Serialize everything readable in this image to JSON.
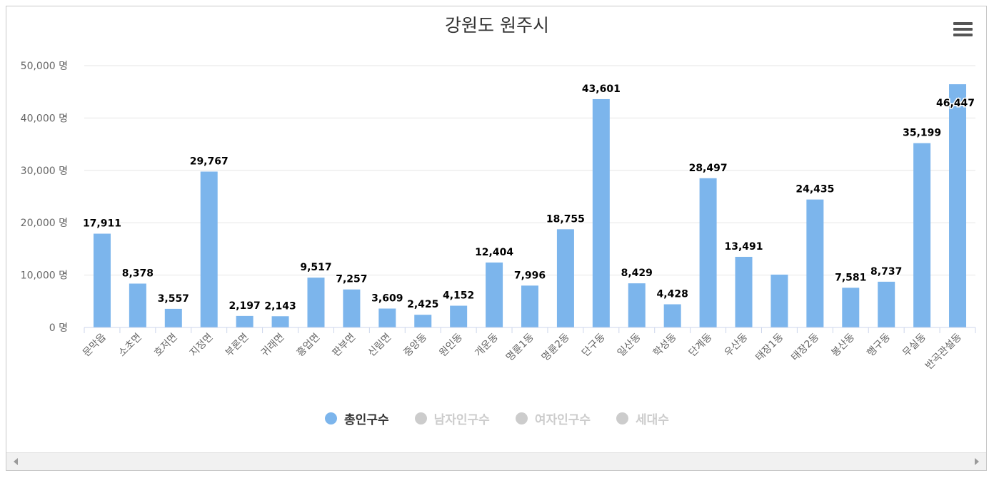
{
  "chart_data": {
    "type": "bar",
    "title": "강원도 원주시",
    "categories": [
      "문막읍",
      "소초면",
      "호저면",
      "지정면",
      "부론면",
      "귀래면",
      "흥업면",
      "판부면",
      "신림면",
      "중앙동",
      "원인동",
      "개운동",
      "명륜1동",
      "명륜2동",
      "단구동",
      "일산동",
      "학성동",
      "단계동",
      "우산동",
      "태장1동",
      "태장2동",
      "봉산동",
      "행구동",
      "무실동",
      "반곡관설동"
    ],
    "series": [
      {
        "name": "총인구수",
        "values": [
          17911,
          8378,
          3557,
          29767,
          2197,
          2143,
          9517,
          7257,
          3609,
          2425,
          4152,
          12404,
          7996,
          18755,
          43601,
          8429,
          4428,
          28497,
          13491,
          10094,
          24435,
          7581,
          8737,
          35199,
          46447
        ],
        "visible": true
      },
      {
        "name": "남자인구수",
        "visible": false
      },
      {
        "name": "여자인구수",
        "visible": false
      },
      {
        "name": "세대수",
        "visible": false
      }
    ],
    "data_labels": [
      "17,911",
      "8,378",
      "3,557",
      "29,767",
      "2,197",
      "2,143",
      "9,517",
      "7,257",
      "3,609",
      "2,425",
      "4,152",
      "12,404",
      "7,996",
      "18,755",
      "43,601",
      "8,429",
      "4,428",
      "28,497",
      "13,491",
      "",
      "24,435",
      "7,581",
      "8,737",
      "35,199",
      "46,447"
    ],
    "yticks": [
      {
        "value": 0,
        "label": "0 명"
      },
      {
        "value": 10000,
        "label": "10,000 명"
      },
      {
        "value": 20000,
        "label": "20,000 명"
      },
      {
        "value": 30000,
        "label": "30,000 명"
      },
      {
        "value": 40000,
        "label": "40,000 명"
      },
      {
        "value": 50000,
        "label": "50,000 명"
      }
    ],
    "ylim": [
      0,
      50000
    ],
    "grid": true,
    "legend_position": "bottom",
    "colors": {
      "bar": "#7cb5ec",
      "hidden": "#cccccc",
      "grid": "#e6e6e6",
      "axis": "#ccd6eb",
      "text": "#333333",
      "muted": "#666666"
    }
  },
  "legend": {
    "items": [
      {
        "label": "총인구수",
        "color": "#7cb5ec",
        "text_color": "#333333"
      },
      {
        "label": "남자인구수",
        "color": "#cccccc",
        "text_color": "#cccccc"
      },
      {
        "label": "여자인구수",
        "color": "#cccccc",
        "text_color": "#cccccc"
      },
      {
        "label": "세대수",
        "color": "#cccccc",
        "text_color": "#cccccc"
      }
    ]
  },
  "menu": {
    "icon": "hamburger-menu-icon"
  },
  "scrollbar": {
    "left_icon": "scroll-left-arrow-icon",
    "right_icon": "scroll-right-arrow-icon"
  }
}
